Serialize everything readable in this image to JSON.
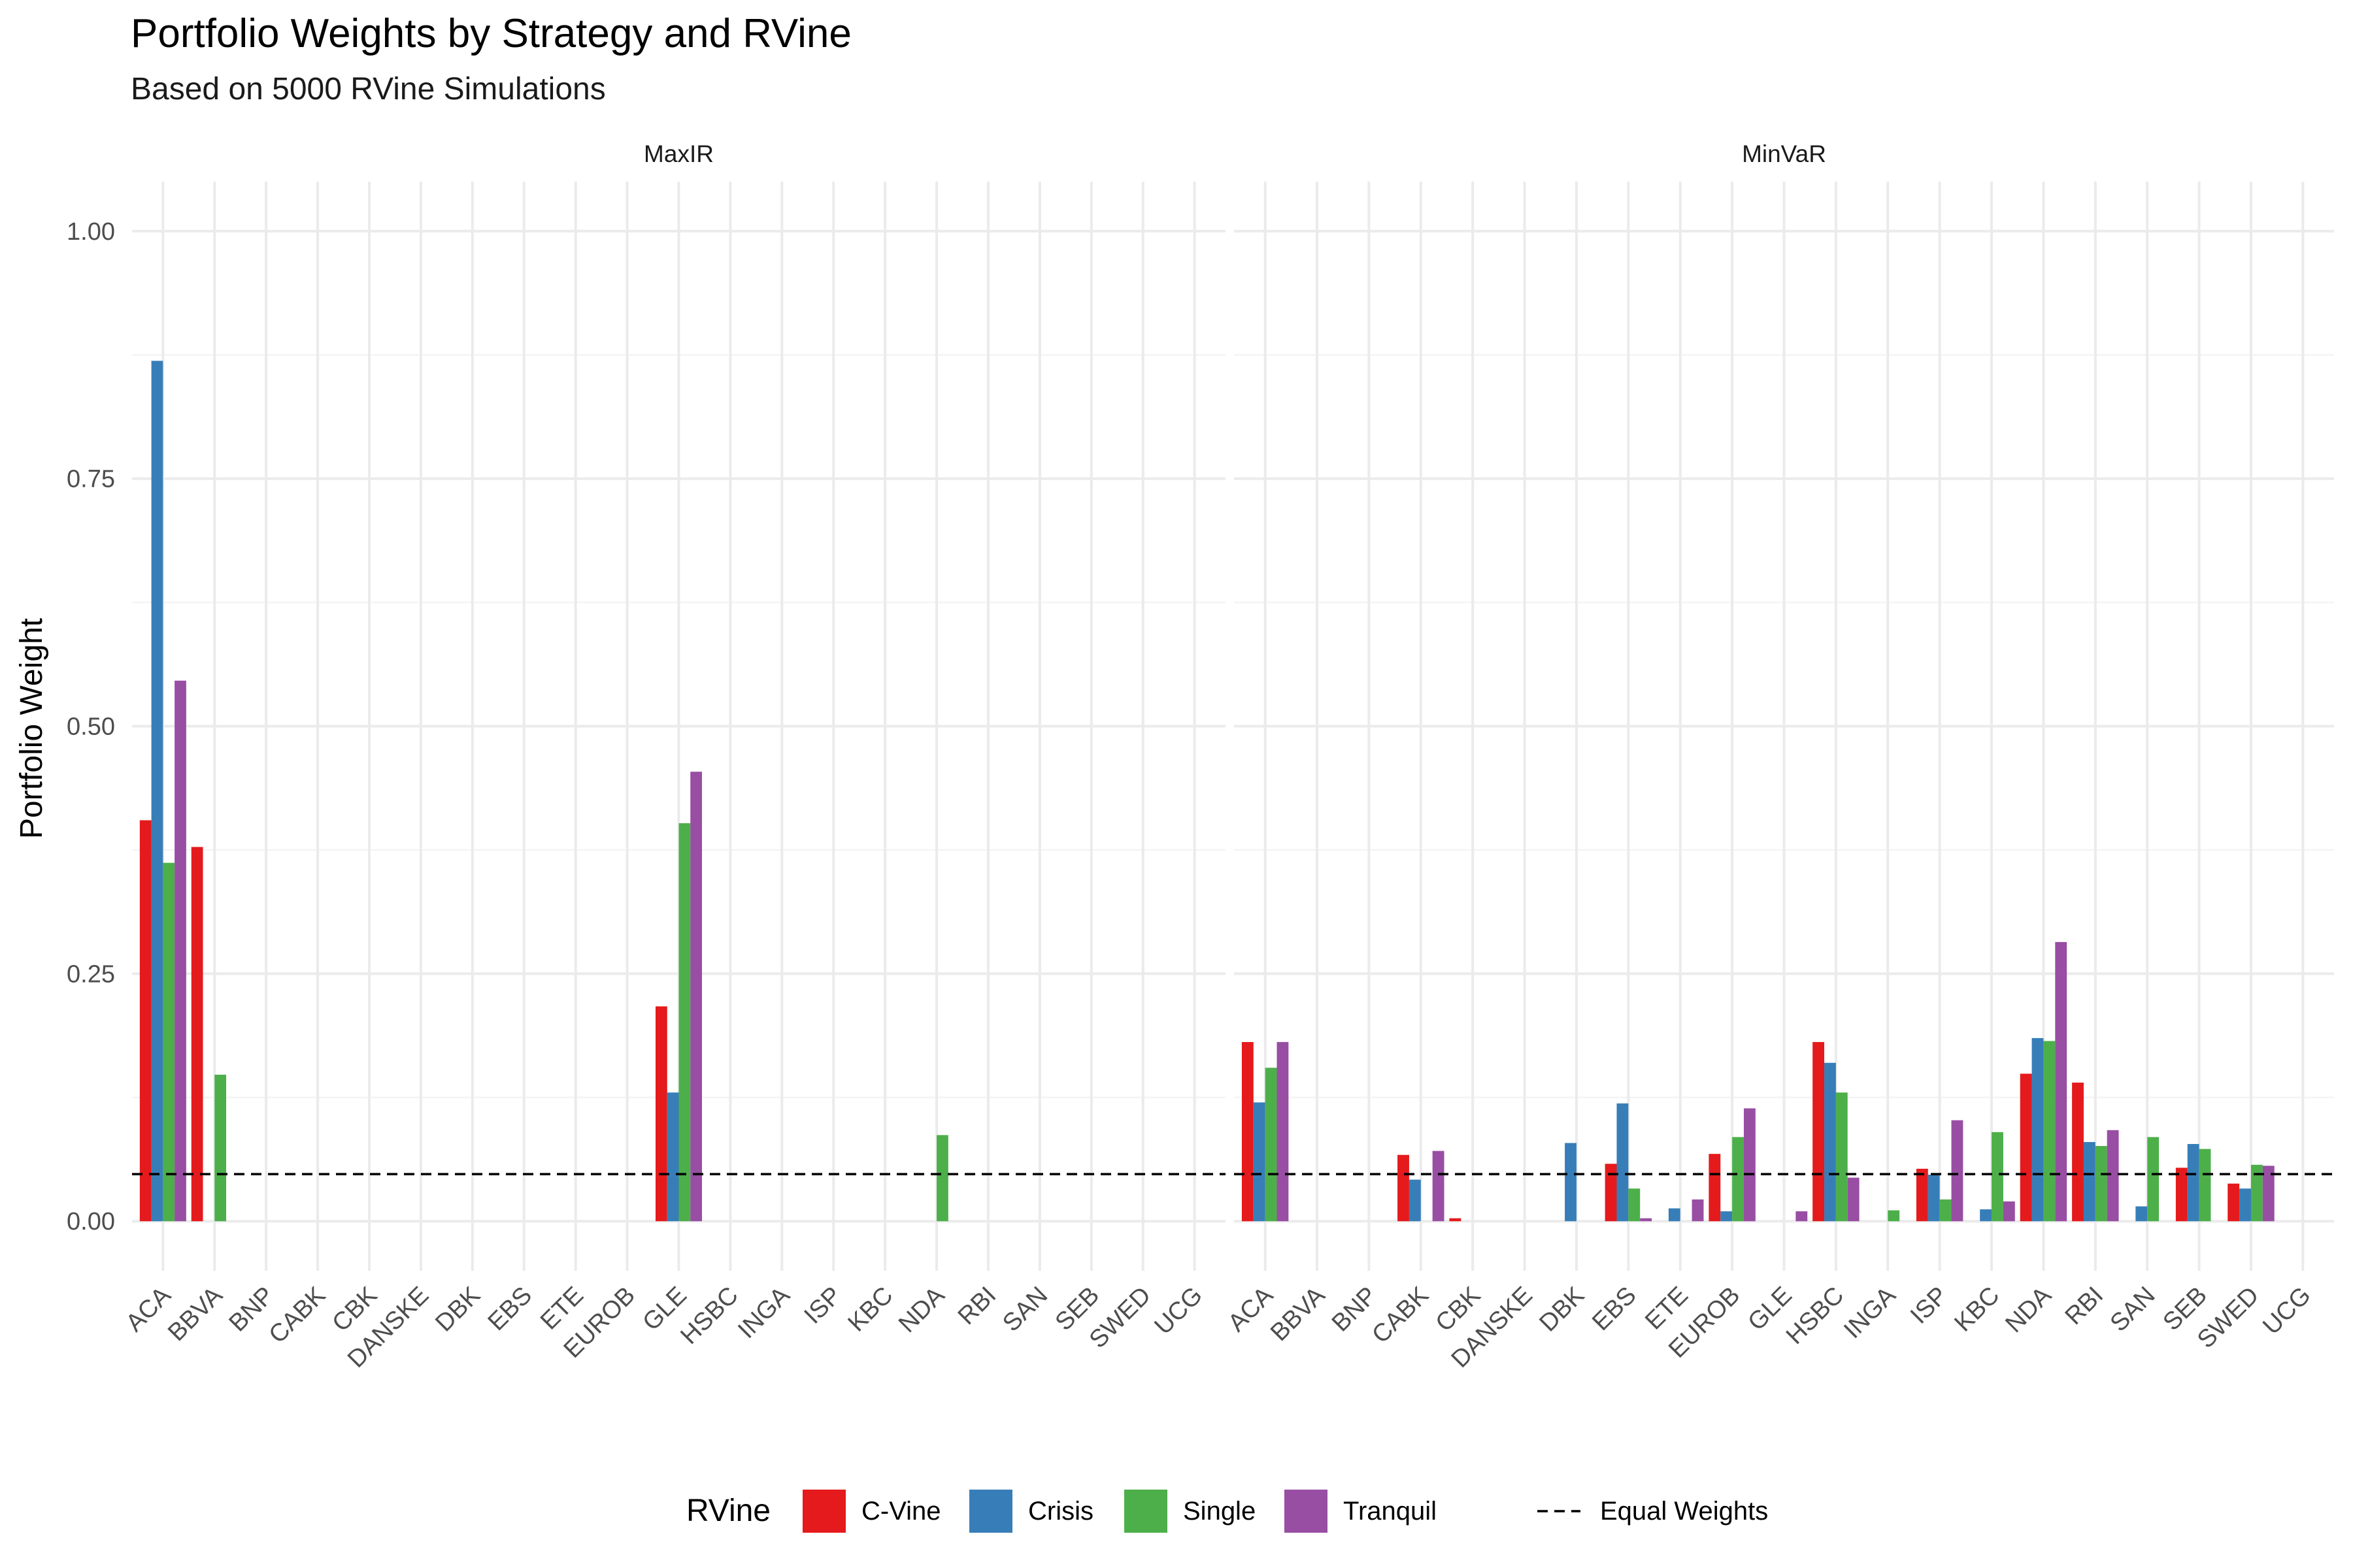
{
  "chart_data": {
    "type": "bar",
    "title": "Portfolio Weights by Strategy and RVine",
    "subtitle": "Based on 5000 RVine Simulations",
    "ylabel": "Portfolio Weight",
    "xlabel": "",
    "ylim": [
      -0.05,
      1.05
    ],
    "yticks": [
      0.0,
      0.25,
      0.5,
      0.75,
      1.0
    ],
    "ytick_labels": [
      "0.00",
      "0.25",
      "0.50",
      "0.75",
      "1.00"
    ],
    "grid": true,
    "legend_position": "bottom",
    "legend_title": "RVine",
    "categories": [
      "ACA",
      "BBVA",
      "BNP",
      "CABK",
      "CBK",
      "DANSKE",
      "DBK",
      "EBS",
      "ETE",
      "EUROB",
      "GLE",
      "HSBC",
      "INGA",
      "ISP",
      "KBC",
      "NDA",
      "RBI",
      "SAN",
      "SEB",
      "SWED",
      "UCG"
    ],
    "series_names": [
      "C-Vine",
      "Crisis",
      "Single",
      "Tranquil"
    ],
    "colors": [
      "#E41A1C",
      "#377EB8",
      "#4DAF4A",
      "#984EA3"
    ],
    "reference_line": {
      "name": "Equal Weights",
      "value": 0.0476,
      "style": "dashed",
      "color": "#000000"
    },
    "panels": [
      {
        "name": "MaxIR",
        "series": [
          {
            "name": "C-Vine",
            "values": [
              0.405,
              0.378,
              0,
              0,
              0,
              0,
              0,
              0,
              0,
              0,
              0.217,
              0,
              0,
              0,
              0,
              0,
              0,
              0,
              0,
              0,
              0
            ]
          },
          {
            "name": "Crisis",
            "values": [
              0.869,
              0,
              0,
              0,
              0,
              0,
              0,
              0,
              0,
              0,
              0.13,
              0,
              0,
              0,
              0,
              0,
              0,
              0,
              0,
              0,
              0
            ]
          },
          {
            "name": "Single",
            "values": [
              0.362,
              0.148,
              0,
              0,
              0,
              0,
              0,
              0,
              0,
              0,
              0.402,
              0,
              0,
              0,
              0,
              0.087,
              0,
              0,
              0,
              0,
              0
            ]
          },
          {
            "name": "Tranquil",
            "values": [
              0.546,
              0,
              0,
              0,
              0,
              0,
              0,
              0,
              0,
              0,
              0.454,
              0,
              0,
              0,
              0,
              0,
              0,
              0,
              0,
              0,
              0
            ]
          }
        ]
      },
      {
        "name": "MinVaR",
        "series": [
          {
            "name": "C-Vine",
            "values": [
              0.181,
              0,
              0,
              0.067,
              0.003,
              0,
              0,
              0.058,
              0,
              0.068,
              0,
              0.181,
              0,
              0.053,
              0,
              0.149,
              0.14,
              0,
              0.054,
              0.038,
              0
            ]
          },
          {
            "name": "Crisis",
            "values": [
              0.12,
              0,
              0,
              0.042,
              0,
              0,
              0.079,
              0.119,
              0.013,
              0.01,
              0,
              0.16,
              0,
              0.047,
              0.012,
              0.185,
              0.08,
              0.015,
              0.078,
              0.033,
              0
            ]
          },
          {
            "name": "Single",
            "values": [
              0.155,
              0,
              0,
              0,
              0,
              0,
              0,
              0.033,
              0,
              0.085,
              0,
              0.13,
              0.011,
              0.022,
              0.09,
              0.182,
              0.076,
              0.085,
              0.073,
              0.057,
              0
            ]
          },
          {
            "name": "Tranquil",
            "values": [
              0.181,
              0,
              0,
              0.071,
              0,
              0,
              0,
              0.003,
              0.022,
              0.114,
              0.01,
              0.044,
              0,
              0.102,
              0.02,
              0.282,
              0.092,
              0,
              0,
              0.056,
              0
            ]
          }
        ]
      }
    ]
  }
}
